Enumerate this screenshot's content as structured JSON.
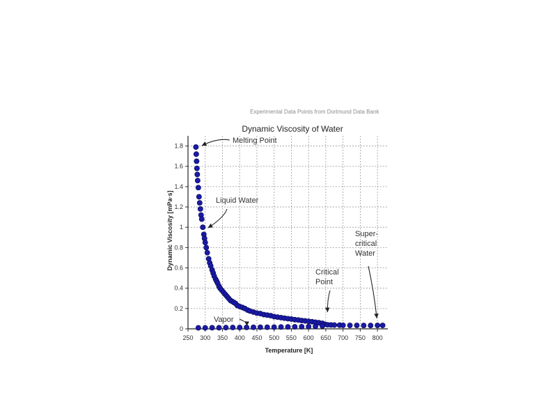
{
  "source_note": "Experimental Data Points from Dortmund Data Bank",
  "chart_data": {
    "type": "scatter",
    "title": "Dynamic Viscosity of Water",
    "xlabel": "Temperature [K]",
    "ylabel": "Dynamic Viscosity [mPa·s]",
    "xlim": [
      250,
      830
    ],
    "ylim": [
      0,
      1.9
    ],
    "xticks": [
      250,
      300,
      350,
      400,
      450,
      500,
      550,
      600,
      650,
      700,
      750,
      800
    ],
    "xtick_labels": [
      "250",
      "300",
      "350",
      "400",
      "450",
      "500",
      "550",
      "600",
      "650",
      "700",
      "750",
      "800"
    ],
    "yticks": [
      0,
      0.2,
      0.4,
      0.6,
      0.8,
      1,
      1.2,
      1.4,
      1.6,
      1.8
    ],
    "ytick_labels": [
      "0",
      "0.2",
      "0.4",
      "0.6",
      "0.8",
      "1",
      "1.2",
      "1.4",
      "1.6",
      "1.8"
    ],
    "grid": true,
    "marker_color": "#1a1aa8",
    "series": [
      {
        "values": [
          {
            "x": 273,
            "y": 1.79
          },
          {
            "x": 274,
            "y": 1.72
          },
          {
            "x": 275,
            "y": 1.65
          },
          {
            "x": 276,
            "y": 1.58
          },
          {
            "x": 277,
            "y": 1.52
          },
          {
            "x": 278,
            "y": 1.46
          },
          {
            "x": 280,
            "y": 1.39
          },
          {
            "x": 282,
            "y": 1.3
          },
          {
            "x": 284,
            "y": 1.24
          },
          {
            "x": 286,
            "y": 1.18
          },
          {
            "x": 288,
            "y": 1.12
          },
          {
            "x": 290,
            "y": 1.08
          },
          {
            "x": 293,
            "y": 1.0
          },
          {
            "x": 296,
            "y": 0.93
          },
          {
            "x": 298,
            "y": 0.89
          },
          {
            "x": 300,
            "y": 0.85
          },
          {
            "x": 303,
            "y": 0.8
          },
          {
            "x": 306,
            "y": 0.75
          },
          {
            "x": 310,
            "y": 0.69
          },
          {
            "x": 313,
            "y": 0.65
          },
          {
            "x": 316,
            "y": 0.62
          },
          {
            "x": 320,
            "y": 0.58
          },
          {
            "x": 323,
            "y": 0.55
          },
          {
            "x": 326,
            "y": 0.52
          },
          {
            "x": 330,
            "y": 0.49
          },
          {
            "x": 333,
            "y": 0.47
          },
          {
            "x": 336,
            "y": 0.45
          },
          {
            "x": 340,
            "y": 0.42
          },
          {
            "x": 343,
            "y": 0.4
          },
          {
            "x": 348,
            "y": 0.38
          },
          {
            "x": 353,
            "y": 0.36
          },
          {
            "x": 358,
            "y": 0.34
          },
          {
            "x": 363,
            "y": 0.32
          },
          {
            "x": 368,
            "y": 0.3
          },
          {
            "x": 373,
            "y": 0.28
          },
          {
            "x": 378,
            "y": 0.27
          },
          {
            "x": 383,
            "y": 0.26
          },
          {
            "x": 388,
            "y": 0.25
          },
          {
            "x": 393,
            "y": 0.23
          },
          {
            "x": 400,
            "y": 0.22
          },
          {
            "x": 408,
            "y": 0.21
          },
          {
            "x": 415,
            "y": 0.2
          },
          {
            "x": 423,
            "y": 0.185
          },
          {
            "x": 430,
            "y": 0.175
          },
          {
            "x": 440,
            "y": 0.165
          },
          {
            "x": 450,
            "y": 0.155
          },
          {
            "x": 460,
            "y": 0.15
          },
          {
            "x": 470,
            "y": 0.14
          },
          {
            "x": 480,
            "y": 0.135
          },
          {
            "x": 490,
            "y": 0.13
          },
          {
            "x": 500,
            "y": 0.12
          },
          {
            "x": 510,
            "y": 0.115
          },
          {
            "x": 520,
            "y": 0.11
          },
          {
            "x": 530,
            "y": 0.105
          },
          {
            "x": 540,
            "y": 0.1
          },
          {
            "x": 550,
            "y": 0.096
          },
          {
            "x": 560,
            "y": 0.09
          },
          {
            "x": 570,
            "y": 0.087
          },
          {
            "x": 580,
            "y": 0.082
          },
          {
            "x": 590,
            "y": 0.078
          },
          {
            "x": 600,
            "y": 0.074
          },
          {
            "x": 610,
            "y": 0.07
          },
          {
            "x": 620,
            "y": 0.065
          },
          {
            "x": 630,
            "y": 0.06
          },
          {
            "x": 640,
            "y": 0.054
          },
          {
            "x": 647,
            "y": 0.045
          },
          {
            "x": 655,
            "y": 0.04
          },
          {
            "x": 665,
            "y": 0.038
          },
          {
            "x": 675,
            "y": 0.037
          },
          {
            "x": 690,
            "y": 0.036
          },
          {
            "x": 700,
            "y": 0.035
          },
          {
            "x": 720,
            "y": 0.034
          },
          {
            "x": 740,
            "y": 0.034
          },
          {
            "x": 760,
            "y": 0.033
          },
          {
            "x": 780,
            "y": 0.033
          },
          {
            "x": 800,
            "y": 0.034
          },
          {
            "x": 815,
            "y": 0.034
          },
          {
            "x": 280,
            "y": 0.01
          },
          {
            "x": 300,
            "y": 0.01
          },
          {
            "x": 320,
            "y": 0.011
          },
          {
            "x": 340,
            "y": 0.011
          },
          {
            "x": 360,
            "y": 0.012
          },
          {
            "x": 380,
            "y": 0.013
          },
          {
            "x": 400,
            "y": 0.013
          },
          {
            "x": 420,
            "y": 0.014
          },
          {
            "x": 440,
            "y": 0.015
          },
          {
            "x": 460,
            "y": 0.016
          },
          {
            "x": 480,
            "y": 0.016
          },
          {
            "x": 500,
            "y": 0.017
          },
          {
            "x": 520,
            "y": 0.018
          },
          {
            "x": 540,
            "y": 0.019
          },
          {
            "x": 560,
            "y": 0.02
          },
          {
            "x": 580,
            "y": 0.021
          },
          {
            "x": 600,
            "y": 0.022
          },
          {
            "x": 620,
            "y": 0.024
          },
          {
            "x": 640,
            "y": 0.028
          }
        ]
      }
    ],
    "annotations": [
      {
        "text": [
          "Melting Point"
        ],
        "target": {
          "x": 274,
          "y": 1.79
        }
      },
      {
        "text": [
          "Liquid Water"
        ],
        "target": {
          "x": 300,
          "y": 0.98
        }
      },
      {
        "text": [
          "Super-",
          "critical",
          "Water"
        ],
        "target": {
          "x": 790,
          "y": 0.09
        }
      },
      {
        "text": [
          "Critical",
          "Point"
        ],
        "target": {
          "x": 647,
          "y": 0.15
        }
      },
      {
        "text": [
          "Vapor"
        ],
        "target": {
          "x": 405,
          "y": 0.06
        }
      }
    ]
  }
}
